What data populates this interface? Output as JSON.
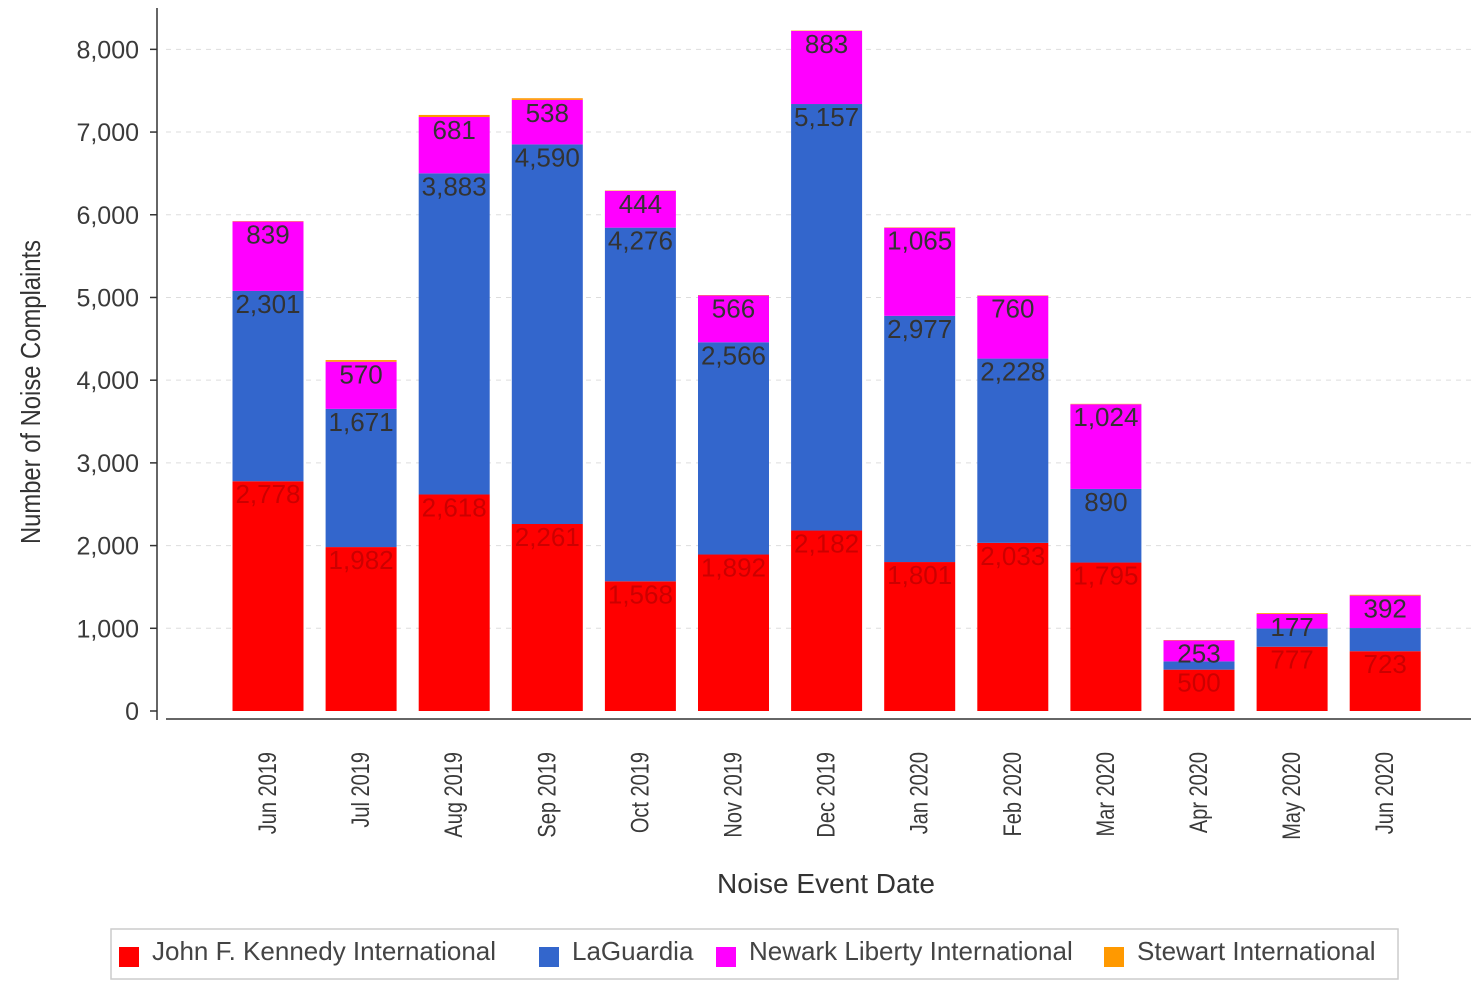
{
  "chart_data": {
    "type": "bar",
    "stacked": true,
    "categories": [
      "Jun 2019",
      "Jul 2019",
      "Aug 2019",
      "Sep 2019",
      "Oct 2019",
      "Nov 2019",
      "Dec 2019",
      "Jan 2020",
      "Feb 2020",
      "Mar 2020",
      "Apr 2020",
      "May 2020",
      "Jun 2020"
    ],
    "series": [
      {
        "name": "John F. Kennedy International",
        "color": "#ff0000",
        "label_color": "#cc0000",
        "values": [
          2778,
          1982,
          2618,
          2261,
          1568,
          1892,
          2182,
          1801,
          2033,
          1795,
          500,
          777,
          723
        ]
      },
      {
        "name": "LaGuardia",
        "color": "#3366cc",
        "label_color": "#333333",
        "values": [
          2301,
          1671,
          3883,
          4590,
          4276,
          2566,
          5157,
          2977,
          2228,
          890,
          100,
          220,
          280
        ]
      },
      {
        "name": "Newark Liberty International",
        "color": "#ff00ff",
        "label_color": "#333333",
        "values": [
          839,
          570,
          681,
          538,
          444,
          566,
          883,
          1065,
          760,
          1024,
          253,
          177,
          392
        ]
      },
      {
        "name": "Stewart International",
        "color": "#ff9900",
        "label_color": "#333333",
        "values": [
          5,
          20,
          25,
          20,
          5,
          5,
          5,
          5,
          5,
          5,
          5,
          10,
          10
        ]
      }
    ],
    "visible_labels": [
      [
        true,
        true,
        true,
        true,
        true,
        true,
        true,
        true,
        true,
        true,
        true,
        true,
        true
      ],
      [
        true,
        true,
        true,
        true,
        true,
        true,
        true,
        true,
        true,
        true,
        false,
        false,
        false
      ],
      [
        true,
        true,
        true,
        true,
        true,
        true,
        true,
        true,
        true,
        true,
        true,
        true,
        true
      ],
      [
        false,
        false,
        false,
        false,
        false,
        false,
        false,
        false,
        false,
        false,
        false,
        false,
        false
      ]
    ],
    "xlabel": "Noise Event Date",
    "ylabel": "Number of Noise Complaints",
    "ylim": [
      0,
      8500
    ],
    "yticks": [
      0,
      1000,
      2000,
      3000,
      4000,
      5000,
      6000,
      7000,
      8000
    ],
    "ytick_labels": [
      "0",
      "1,000",
      "2,000",
      "3,000",
      "4,000",
      "5,000",
      "6,000",
      "7,000",
      "8,000"
    ],
    "grid": "horizontal-dashed",
    "legend_position": "bottom"
  }
}
